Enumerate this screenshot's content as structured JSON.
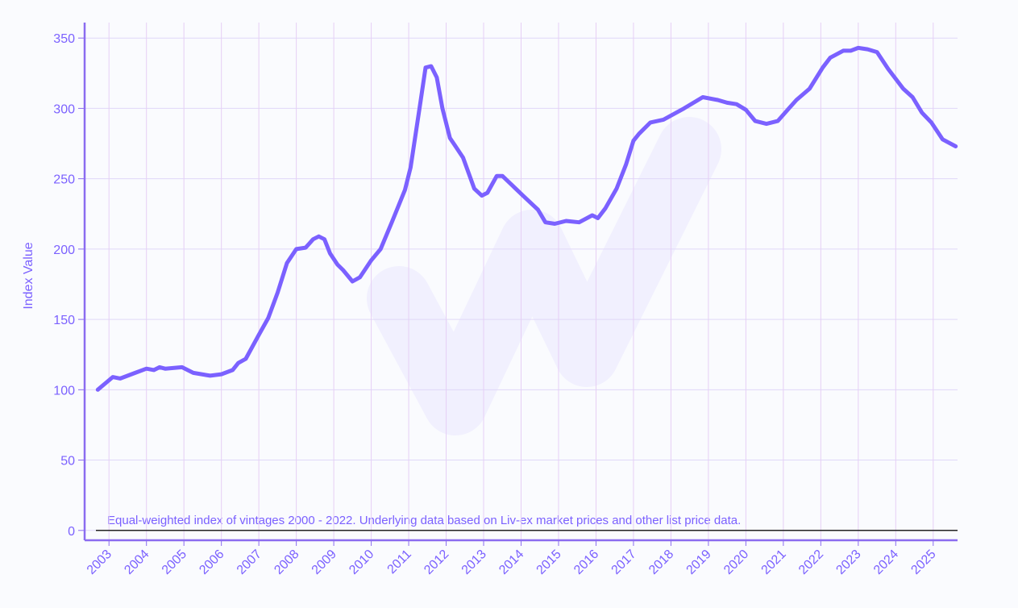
{
  "chart_data": {
    "type": "line",
    "y_label": "Index Value",
    "annotation": "Equal-weighted index of vintages 2000 - 2022. Underlying data based on Liv-ex market prices and other list price data.",
    "xlim": [
      2002.35,
      2025.65
    ],
    "xticks": [
      2003,
      2004,
      2005,
      2006,
      2007,
      2008,
      2009,
      2010,
      2011,
      2012,
      2013,
      2014,
      2015,
      2016,
      2017,
      2018,
      2019,
      2020,
      2021,
      2022,
      2023,
      2024,
      2025
    ],
    "ylim": [
      -7,
      361
    ],
    "yticks": [
      0,
      50,
      100,
      150,
      200,
      250,
      300,
      350
    ],
    "grid": true,
    "series": [
      {
        "color": "#7b61ff",
        "x": [
          2002.7,
          2003.1,
          2003.3,
          2003.7,
          2004.0,
          2004.2,
          2004.35,
          2004.5,
          2004.95,
          2005.25,
          2005.7,
          2006.0,
          2006.3,
          2006.45,
          2006.65,
          2007.0,
          2007.25,
          2007.5,
          2007.75,
          2008.0,
          2008.25,
          2008.45,
          2008.6,
          2008.75,
          2008.9,
          2009.1,
          2009.25,
          2009.5,
          2009.7,
          2010.0,
          2010.25,
          2010.55,
          2010.9,
          2011.05,
          2011.3,
          2011.45,
          2011.6,
          2011.75,
          2011.9,
          2012.1,
          2012.25,
          2012.45,
          2012.75,
          2012.95,
          2013.1,
          2013.35,
          2013.5,
          2014.05,
          2014.45,
          2014.65,
          2014.9,
          2015.2,
          2015.55,
          2015.9,
          2016.05,
          2016.25,
          2016.55,
          2016.8,
          2017.0,
          2017.15,
          2017.45,
          2017.8,
          2018.35,
          2018.85,
          2019.25,
          2019.5,
          2019.75,
          2020.0,
          2020.25,
          2020.55,
          2020.85,
          2021.15,
          2021.35,
          2021.7,
          2022.05,
          2022.25,
          2022.6,
          2022.8,
          2023.0,
          2023.25,
          2023.5,
          2023.8,
          2024.2,
          2024.45,
          2024.7,
          2024.95,
          2025.25,
          2025.6
        ],
        "values": [
          100,
          109,
          108,
          112,
          115,
          114,
          116,
          115,
          116,
          112,
          110,
          111,
          114,
          119,
          122,
          139,
          151,
          169,
          190,
          200,
          201,
          207,
          209,
          207,
          197,
          189,
          185,
          177,
          180,
          192,
          200,
          219,
          242,
          258,
          302,
          329,
          330,
          322,
          300,
          279,
          273,
          265,
          243,
          238,
          240,
          252,
          252,
          238,
          228,
          219,
          218,
          220,
          219,
          224,
          222,
          229,
          243,
          260,
          277,
          282,
          290,
          292,
          300,
          308,
          306,
          304,
          303,
          299,
          291,
          289,
          291,
          300,
          306,
          314,
          329,
          336,
          341,
          341,
          343,
          342,
          340,
          328,
          314,
          308,
          297,
          290,
          278,
          273
        ]
      }
    ]
  }
}
